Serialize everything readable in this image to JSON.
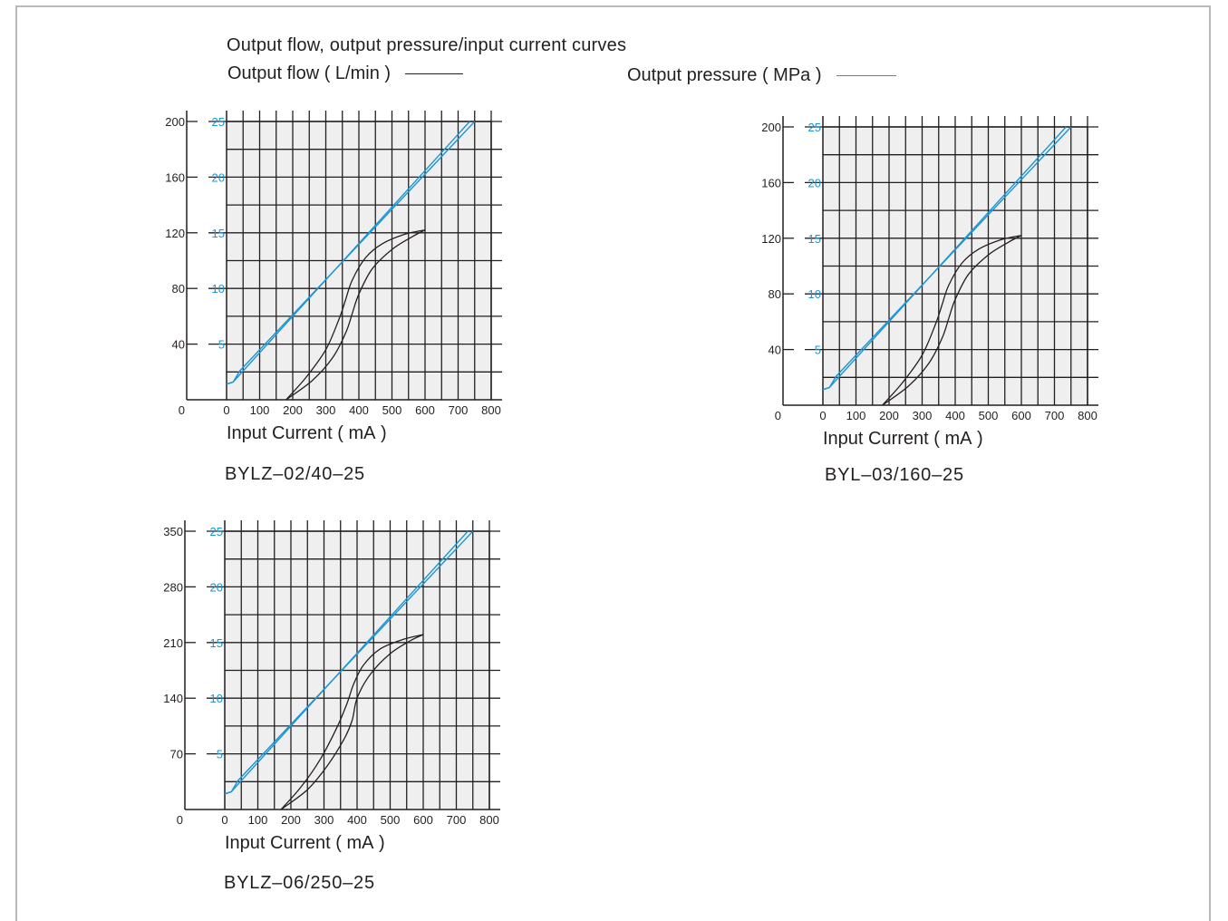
{
  "heading": "Output flow, output pressure/input current curves",
  "legend": {
    "flow_label": "Output flow ( L/min )",
    "flow_color": "#231f20",
    "pressure_label": "Output pressure ( MPa )",
    "pressure_color": "#1b95d3"
  },
  "colors": {
    "plot_bg": "#efefef",
    "grid": "#231f20",
    "pressure": "#1b95d3",
    "flow": "#231f20"
  },
  "chart_data": [
    {
      "type": "line",
      "title": "BYLZ–02/40–25",
      "xlabel": "Input Current ( mA )",
      "xlim": [
        0,
        800
      ],
      "x_ticks": [
        "0",
        "100",
        "200",
        "300",
        "400",
        "500",
        "600",
        "700",
        "800"
      ],
      "origin_label": "0",
      "left_ylim": [
        0,
        200
      ],
      "left_ticks": [
        40,
        80,
        120,
        160,
        200
      ],
      "right_ylim": [
        0,
        25
      ],
      "right_ticks": [
        5,
        10,
        15,
        20,
        25
      ],
      "grid": true,
      "series": [
        {
          "axis": "pressure",
          "x": [
            0,
            20,
            40,
            750
          ],
          "y": [
            1.4,
            1.6,
            2.6,
            25
          ]
        },
        {
          "axis": "pressure",
          "x": [
            0,
            20,
            50,
            735
          ],
          "y": [
            1.4,
            1.6,
            2.6,
            25
          ]
        },
        {
          "axis": "flow",
          "x": [
            180,
            260,
            320,
            360,
            380,
            400,
            440,
            500,
            560,
            600
          ],
          "y": [
            0,
            14,
            30,
            48,
            62,
            76,
            94,
            108,
            117,
            122
          ]
        },
        {
          "axis": "flow",
          "x": [
            180,
            240,
            300,
            340,
            360,
            380,
            420,
            470,
            540,
            600
          ],
          "y": [
            0,
            16,
            36,
            58,
            72,
            86,
            102,
            112,
            119,
            122
          ]
        }
      ]
    },
    {
      "type": "line",
      "title": "BYL–03/160–25",
      "xlabel": "Input Current ( mA )",
      "xlim": [
        0,
        800
      ],
      "x_ticks": [
        "0",
        "100",
        "200",
        "300",
        "400",
        "500",
        "600",
        "700",
        "800"
      ],
      "origin_label": "0",
      "left_ylim": [
        0,
        200
      ],
      "left_ticks": [
        40,
        80,
        120,
        160,
        200
      ],
      "right_ylim": [
        0,
        25
      ],
      "right_ticks": [
        5,
        10,
        15,
        20,
        25
      ],
      "grid": true,
      "series": [
        {
          "axis": "pressure",
          "x": [
            0,
            20,
            40,
            750
          ],
          "y": [
            1.4,
            1.6,
            2.6,
            25
          ]
        },
        {
          "axis": "pressure",
          "x": [
            0,
            20,
            50,
            735
          ],
          "y": [
            1.4,
            1.6,
            2.6,
            25
          ]
        },
        {
          "axis": "flow",
          "x": [
            180,
            260,
            320,
            360,
            380,
            400,
            440,
            500,
            560,
            600
          ],
          "y": [
            0,
            14,
            30,
            48,
            62,
            76,
            94,
            108,
            117,
            122
          ]
        },
        {
          "axis": "flow",
          "x": [
            180,
            240,
            300,
            340,
            360,
            380,
            420,
            470,
            540,
            600
          ],
          "y": [
            0,
            16,
            36,
            58,
            72,
            86,
            102,
            112,
            119,
            122
          ]
        }
      ]
    },
    {
      "type": "line",
      "title": "BYLZ–06/250–25",
      "xlabel": "Input Current ( mA )",
      "xlim": [
        0,
        800
      ],
      "x_ticks": [
        "0",
        "100",
        "200",
        "300",
        "400",
        "500",
        "600",
        "700",
        "800"
      ],
      "origin_label": "0",
      "left_ylim": [
        0,
        350
      ],
      "left_ticks": [
        70,
        140,
        210,
        280,
        350
      ],
      "right_ylim": [
        0,
        25
      ],
      "right_ticks": [
        5,
        10,
        15,
        20,
        25
      ],
      "grid": true,
      "series": [
        {
          "axis": "pressure",
          "x": [
            0,
            20,
            40,
            750
          ],
          "y": [
            1.4,
            1.6,
            2.6,
            25
          ]
        },
        {
          "axis": "pressure",
          "x": [
            0,
            20,
            50,
            735
          ],
          "y": [
            1.4,
            1.6,
            2.6,
            25
          ]
        },
        {
          "axis": "flow",
          "x": [
            170,
            250,
            310,
            360,
            385,
            400,
            440,
            500,
            560,
            600
          ],
          "y": [
            0,
            25,
            55,
            88,
            112,
            140,
            170,
            196,
            212,
            220
          ]
        },
        {
          "axis": "flow",
          "x": [
            170,
            230,
            290,
            340,
            370,
            390,
            420,
            470,
            540,
            600
          ],
          "y": [
            0,
            28,
            64,
            104,
            134,
            158,
            182,
            202,
            214,
            220
          ]
        }
      ]
    }
  ]
}
